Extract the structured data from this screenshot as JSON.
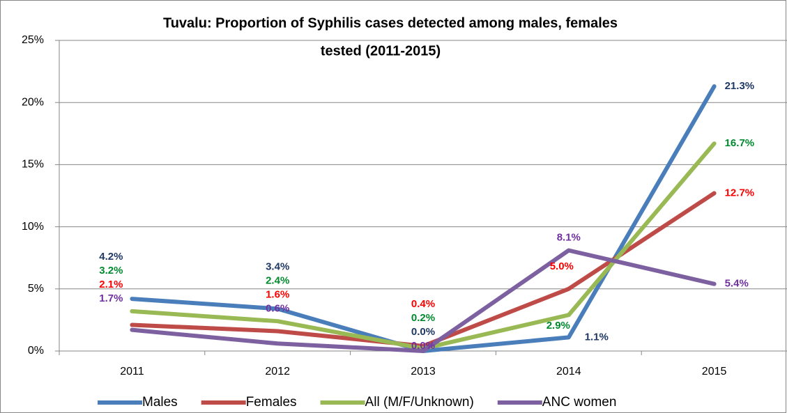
{
  "chart_data": {
    "type": "line",
    "title": [
      "Tuvalu: Proportion of  Syphilis cases detected among males, females",
      "tested (2011-2015)"
    ],
    "categories": [
      "2011",
      "2012",
      "2013",
      "2014",
      "2015"
    ],
    "series": [
      {
        "name": "Males",
        "color": "#4a7ebb",
        "label_color": "#1f3864",
        "values": [
          4.2,
          3.4,
          0.0,
          1.1,
          21.3
        ],
        "value_labels": [
          "4.2%",
          "3.4%",
          "0.0%",
          "1.1%",
          "21.3%"
        ]
      },
      {
        "name": "Females",
        "color": "#be4b48",
        "label_color": "#ff0000",
        "values": [
          2.1,
          1.6,
          0.4,
          5.0,
          12.7
        ],
        "value_labels": [
          "2.1%",
          "1.6%",
          "0.4%",
          "5.0%",
          "12.7%"
        ]
      },
      {
        "name": "All (M/F/Unknown)",
        "color": "#98b954",
        "label_color": "#008a2e",
        "values": [
          3.2,
          2.4,
          0.2,
          2.9,
          16.7
        ],
        "value_labels": [
          "3.2%",
          "2.4%",
          "0.2%",
          "2.9%",
          "16.7%"
        ]
      },
      {
        "name": "ANC women",
        "color": "#7d60a0",
        "label_color": "#7030a0",
        "values": [
          1.7,
          0.6,
          0.0,
          8.1,
          5.4
        ],
        "value_labels": [
          "1.7%",
          "0.6%",
          "0.0%",
          "8.1%",
          "5.4%"
        ]
      }
    ],
    "ylim": [
      0,
      25
    ],
    "yticks": [
      {
        "value": 0,
        "label": "0%"
      },
      {
        "value": 5,
        "label": "5%"
      },
      {
        "value": 10,
        "label": "10%"
      },
      {
        "value": 15,
        "label": "15%"
      },
      {
        "value": 20,
        "label": "20%"
      },
      {
        "value": 25,
        "label": "25%"
      }
    ],
    "grid": true,
    "legend": "bottom"
  }
}
